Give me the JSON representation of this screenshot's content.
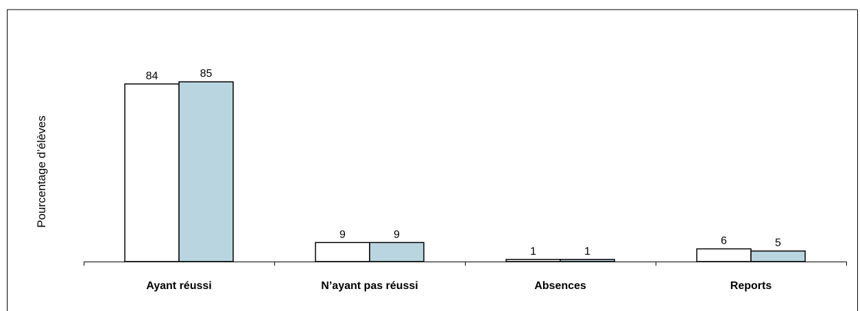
{
  "chart_data": {
    "type": "bar",
    "title": "",
    "xlabel": "",
    "ylabel": "Pourcentage d’élèves",
    "categories": [
      "Ayant réussi",
      "N’ayant pas réussi",
      "Absences",
      "Reports"
    ],
    "series": [
      {
        "values": [
          84,
          9,
          1,
          6
        ],
        "color": "#ffffff"
      },
      {
        "values": [
          85,
          9,
          1,
          5
        ],
        "color": "#b9d5e0"
      }
    ],
    "ylim": [
      0,
      100
    ],
    "grid": false,
    "legend": "none"
  }
}
